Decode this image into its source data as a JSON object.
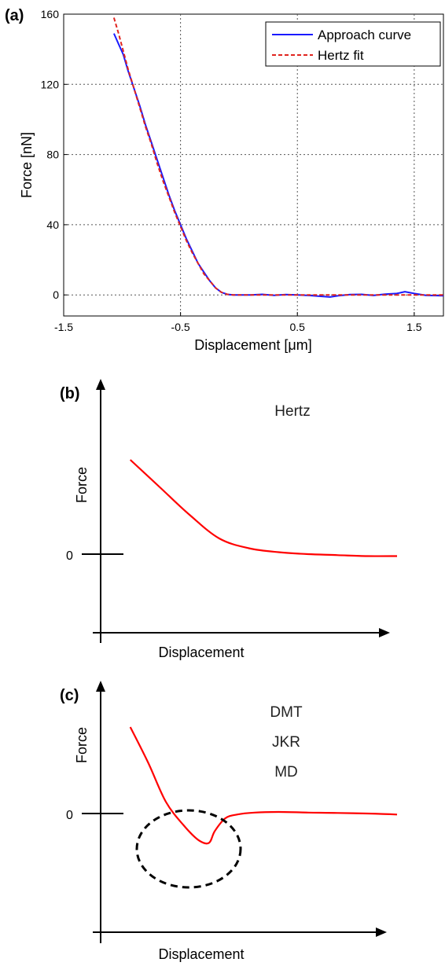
{
  "chart_data": [
    {
      "panel": "(a)",
      "type": "line",
      "xlabel": "Displacement [μm]",
      "ylabel": "Force [nN]",
      "xlim": [
        -1.5,
        1.75
      ],
      "ylim": [
        -12,
        160
      ],
      "x_ticks": [
        -1.5,
        -0.5,
        0.5,
        1.5
      ],
      "x_tick_labels": [
        "-1.5",
        "-0.5",
        "0.5",
        "1.5"
      ],
      "y_ticks": [
        0,
        40,
        80,
        120,
        160
      ],
      "y_tick_labels": [
        "0",
        "40",
        "80",
        "120",
        "160"
      ],
      "grid": true,
      "legend_position": "top-right",
      "series": [
        {
          "name": "Approach curve",
          "color": "#1a1aff",
          "style": "solid",
          "x": [
            -1.07,
            -1.03,
            -0.99,
            -0.95,
            -0.9,
            -0.85,
            -0.8,
            -0.75,
            -0.7,
            -0.65,
            -0.6,
            -0.55,
            -0.5,
            -0.45,
            -0.4,
            -0.35,
            -0.3,
            -0.25,
            -0.2,
            -0.15,
            -0.1,
            -0.05,
            0.0,
            0.1,
            0.2,
            0.3,
            0.4,
            0.5,
            0.6,
            0.7,
            0.78,
            0.85,
            0.95,
            1.05,
            1.15,
            1.25,
            1.35,
            1.42,
            1.5,
            1.6,
            1.75
          ],
          "y": [
            149,
            143,
            137,
            128,
            118,
            108,
            97,
            87,
            77,
            67,
            57,
            48,
            40,
            32,
            25,
            18,
            13,
            8,
            4,
            1.5,
            0.3,
            0,
            0,
            0,
            0.3,
            -0.2,
            0.2,
            0,
            -0.3,
            -0.8,
            -1.2,
            -0.5,
            0.2,
            0.3,
            -0.3,
            0.4,
            0.8,
            1.8,
            0.8,
            -0.2,
            -0.5
          ]
        },
        {
          "name": "Hertz fit",
          "color": "#e0241f",
          "style": "dashed",
          "x": [
            -1.07,
            -1.03,
            -0.99,
            -0.95,
            -0.9,
            -0.85,
            -0.8,
            -0.75,
            -0.7,
            -0.65,
            -0.6,
            -0.55,
            -0.5,
            -0.45,
            -0.4,
            -0.35,
            -0.3,
            -0.25,
            -0.2,
            -0.15,
            -0.1,
            -0.05,
            0.0,
            0.5,
            1.0,
            1.5,
            1.75
          ],
          "y": [
            158,
            149,
            139,
            129,
            118,
            107,
            96,
            86,
            75,
            65,
            56,
            47,
            39,
            31,
            24,
            18,
            12,
            8,
            4,
            1.5,
            0.3,
            0,
            0,
            0,
            0,
            0,
            0
          ]
        }
      ]
    },
    {
      "panel": "(b)",
      "type": "line",
      "xlabel": "Displacement",
      "ylabel": "Force",
      "zero_label": "0",
      "annotation": "Hertz",
      "xlim": [
        0,
        10
      ],
      "ylim": [
        -4,
        12
      ],
      "series": [
        {
          "color": "#ff0000",
          "x": [
            1,
            2,
            3,
            4,
            5,
            6,
            7,
            8,
            9,
            10
          ],
          "y": [
            4.8,
            3.4,
            2.0,
            0.8,
            0.3,
            0.1,
            0.0,
            -0.05,
            -0.1,
            -0.1
          ]
        }
      ]
    },
    {
      "panel": "(c)",
      "type": "line",
      "xlabel": "Displacement",
      "ylabel": "Force",
      "zero_label": "0",
      "annotations": [
        "DMT",
        "JKR",
        "MD"
      ],
      "xlim": [
        0,
        10
      ],
      "ylim": [
        -4,
        12
      ],
      "series": [
        {
          "color": "#ff0000",
          "x": [
            1,
            1.6,
            2.2,
            2.8,
            3.3,
            3.65,
            3.85,
            4.2,
            4.6,
            5.2,
            6,
            7,
            8,
            9,
            10
          ],
          "y": [
            4.4,
            2.6,
            0.6,
            -0.6,
            -1.35,
            -1.5,
            -0.9,
            -0.25,
            -0.05,
            0.05,
            0.08,
            0.05,
            0.03,
            0.0,
            -0.05
          ]
        }
      ]
    }
  ]
}
